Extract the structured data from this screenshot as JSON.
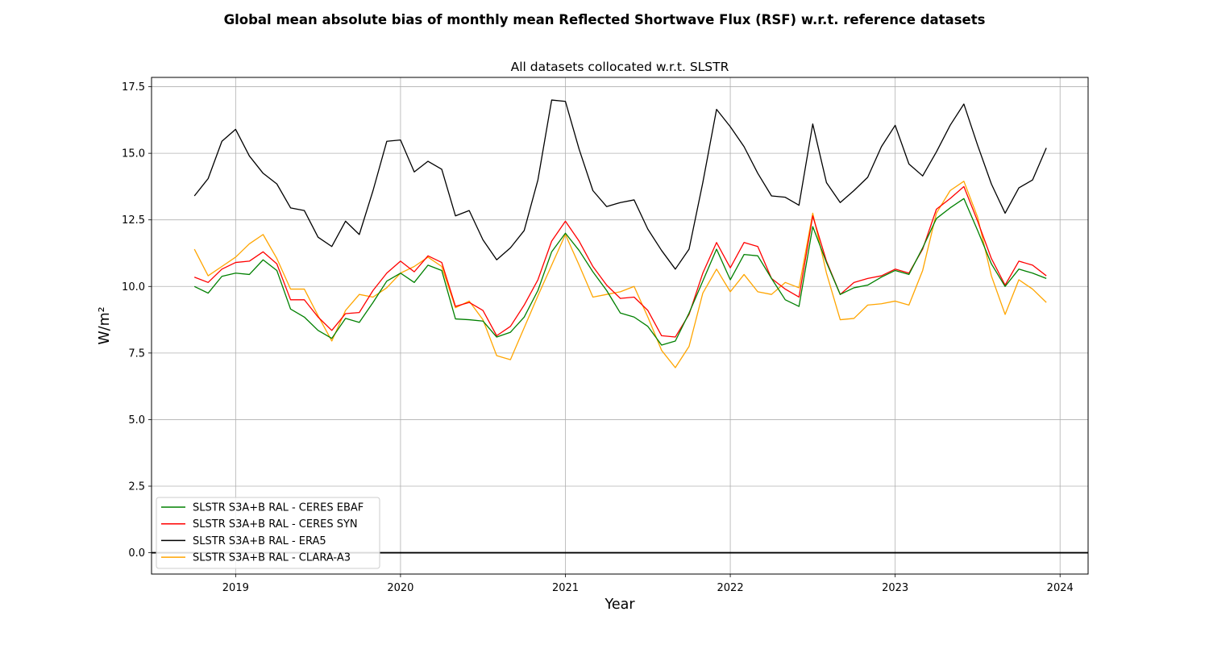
{
  "chart_data": {
    "type": "line",
    "title": "Global mean absolute bias of monthly mean Reflected Shortwave Flux (RSF) w.r.t. reference datasets",
    "subtitle": "All datasets collocated w.r.t. SLSTR",
    "xlabel": "Year",
    "ylabel": "W/m²",
    "xlim": [
      2018.49,
      2024.17
    ],
    "ylim": [
      -0.8,
      17.85
    ],
    "xticks": [
      2019,
      2020,
      2021,
      2022,
      2023,
      2024
    ],
    "xtick_labels": [
      "2019",
      "2020",
      "2021",
      "2022",
      "2023",
      "2024"
    ],
    "yticks": [
      0.0,
      2.5,
      5.0,
      7.5,
      10.0,
      12.5,
      15.0,
      17.5
    ],
    "ytick_labels": [
      "0.0",
      "2.5",
      "5.0",
      "7.5",
      "10.0",
      "12.5",
      "15.0",
      "17.5"
    ],
    "grid": true,
    "legend_position": "lower-left",
    "reference_line": {
      "y": 0,
      "color": "#000000"
    },
    "x_start": "2018-10",
    "series": [
      {
        "name": "SLSTR S3A+B RAL - CERES EBAF",
        "color": "#008000",
        "values": [
          10.0,
          9.75,
          10.38,
          10.5,
          10.45,
          11.0,
          10.6,
          9.15,
          8.85,
          8.35,
          8.05,
          8.8,
          8.65,
          9.4,
          10.2,
          10.5,
          10.15,
          10.8,
          10.6,
          8.78,
          8.75,
          8.7,
          8.1,
          8.28,
          8.85,
          9.85,
          11.3,
          12.0,
          11.35,
          10.55,
          9.85,
          9.0,
          8.85,
          8.5,
          7.8,
          7.95,
          9.0,
          10.2,
          11.4,
          10.25,
          11.2,
          11.15,
          10.3,
          9.5,
          9.25,
          12.25,
          10.9,
          9.7,
          9.95,
          10.05,
          10.35,
          10.6,
          10.45,
          11.45,
          12.55,
          12.95,
          13.3,
          12.1,
          10.85,
          10.0,
          10.65,
          10.5,
          10.3
        ]
      },
      {
        "name": "SLSTR S3A+B RAL - CERES SYN",
        "color": "#ff0000",
        "values": [
          10.35,
          10.15,
          10.65,
          10.9,
          10.95,
          11.3,
          10.85,
          9.5,
          9.5,
          8.85,
          8.35,
          8.98,
          9.02,
          9.85,
          10.5,
          10.95,
          10.55,
          11.15,
          10.9,
          9.25,
          9.4,
          9.1,
          8.15,
          8.5,
          9.3,
          10.25,
          11.7,
          12.45,
          11.7,
          10.75,
          10.05,
          9.55,
          9.6,
          9.1,
          8.15,
          8.1,
          8.95,
          10.5,
          11.65,
          10.7,
          11.65,
          11.5,
          10.3,
          9.9,
          9.6,
          12.65,
          10.95,
          9.7,
          10.15,
          10.3,
          10.4,
          10.65,
          10.5,
          11.4,
          12.9,
          13.3,
          13.75,
          12.45,
          11.05,
          10.05,
          10.95,
          10.8,
          10.4
        ]
      },
      {
        "name": "SLSTR S3A+B RAL - ERA5",
        "color": "#000000",
        "values": [
          13.4,
          14.05,
          15.45,
          15.9,
          14.9,
          14.25,
          13.85,
          12.95,
          12.85,
          11.85,
          11.5,
          12.45,
          11.95,
          13.6,
          15.45,
          15.5,
          14.3,
          14.7,
          14.4,
          12.65,
          12.85,
          11.75,
          11.0,
          11.45,
          12.1,
          14.0,
          17.0,
          16.95,
          15.15,
          13.6,
          13.0,
          13.15,
          13.25,
          12.15,
          11.35,
          10.65,
          11.4,
          13.9,
          16.65,
          16.0,
          15.25,
          14.25,
          13.4,
          13.35,
          13.05,
          16.1,
          13.9,
          13.15,
          13.6,
          14.1,
          15.25,
          16.05,
          14.6,
          14.15,
          15.05,
          16.05,
          16.85,
          15.3,
          13.85,
          12.75,
          13.7,
          14.0,
          15.2
        ]
      },
      {
        "name": "SLSTR S3A+B RAL - CLARA-A3",
        "color": "#ffa500",
        "values": [
          11.4,
          10.4,
          10.75,
          11.1,
          11.6,
          11.95,
          11.05,
          9.9,
          9.9,
          8.9,
          7.95,
          9.1,
          9.7,
          9.6,
          9.95,
          10.5,
          10.75,
          11.1,
          10.75,
          9.2,
          9.45,
          8.75,
          7.4,
          7.25,
          8.45,
          9.65,
          10.8,
          11.95,
          10.8,
          9.6,
          9.7,
          9.8,
          10.0,
          8.85,
          7.6,
          6.95,
          7.75,
          9.75,
          10.65,
          9.8,
          10.45,
          9.8,
          9.7,
          10.15,
          9.95,
          12.75,
          10.5,
          8.75,
          8.8,
          9.3,
          9.35,
          9.45,
          9.3,
          10.6,
          12.75,
          13.6,
          13.95,
          12.6,
          10.4,
          8.95,
          10.25,
          9.9,
          9.4
        ]
      }
    ]
  }
}
